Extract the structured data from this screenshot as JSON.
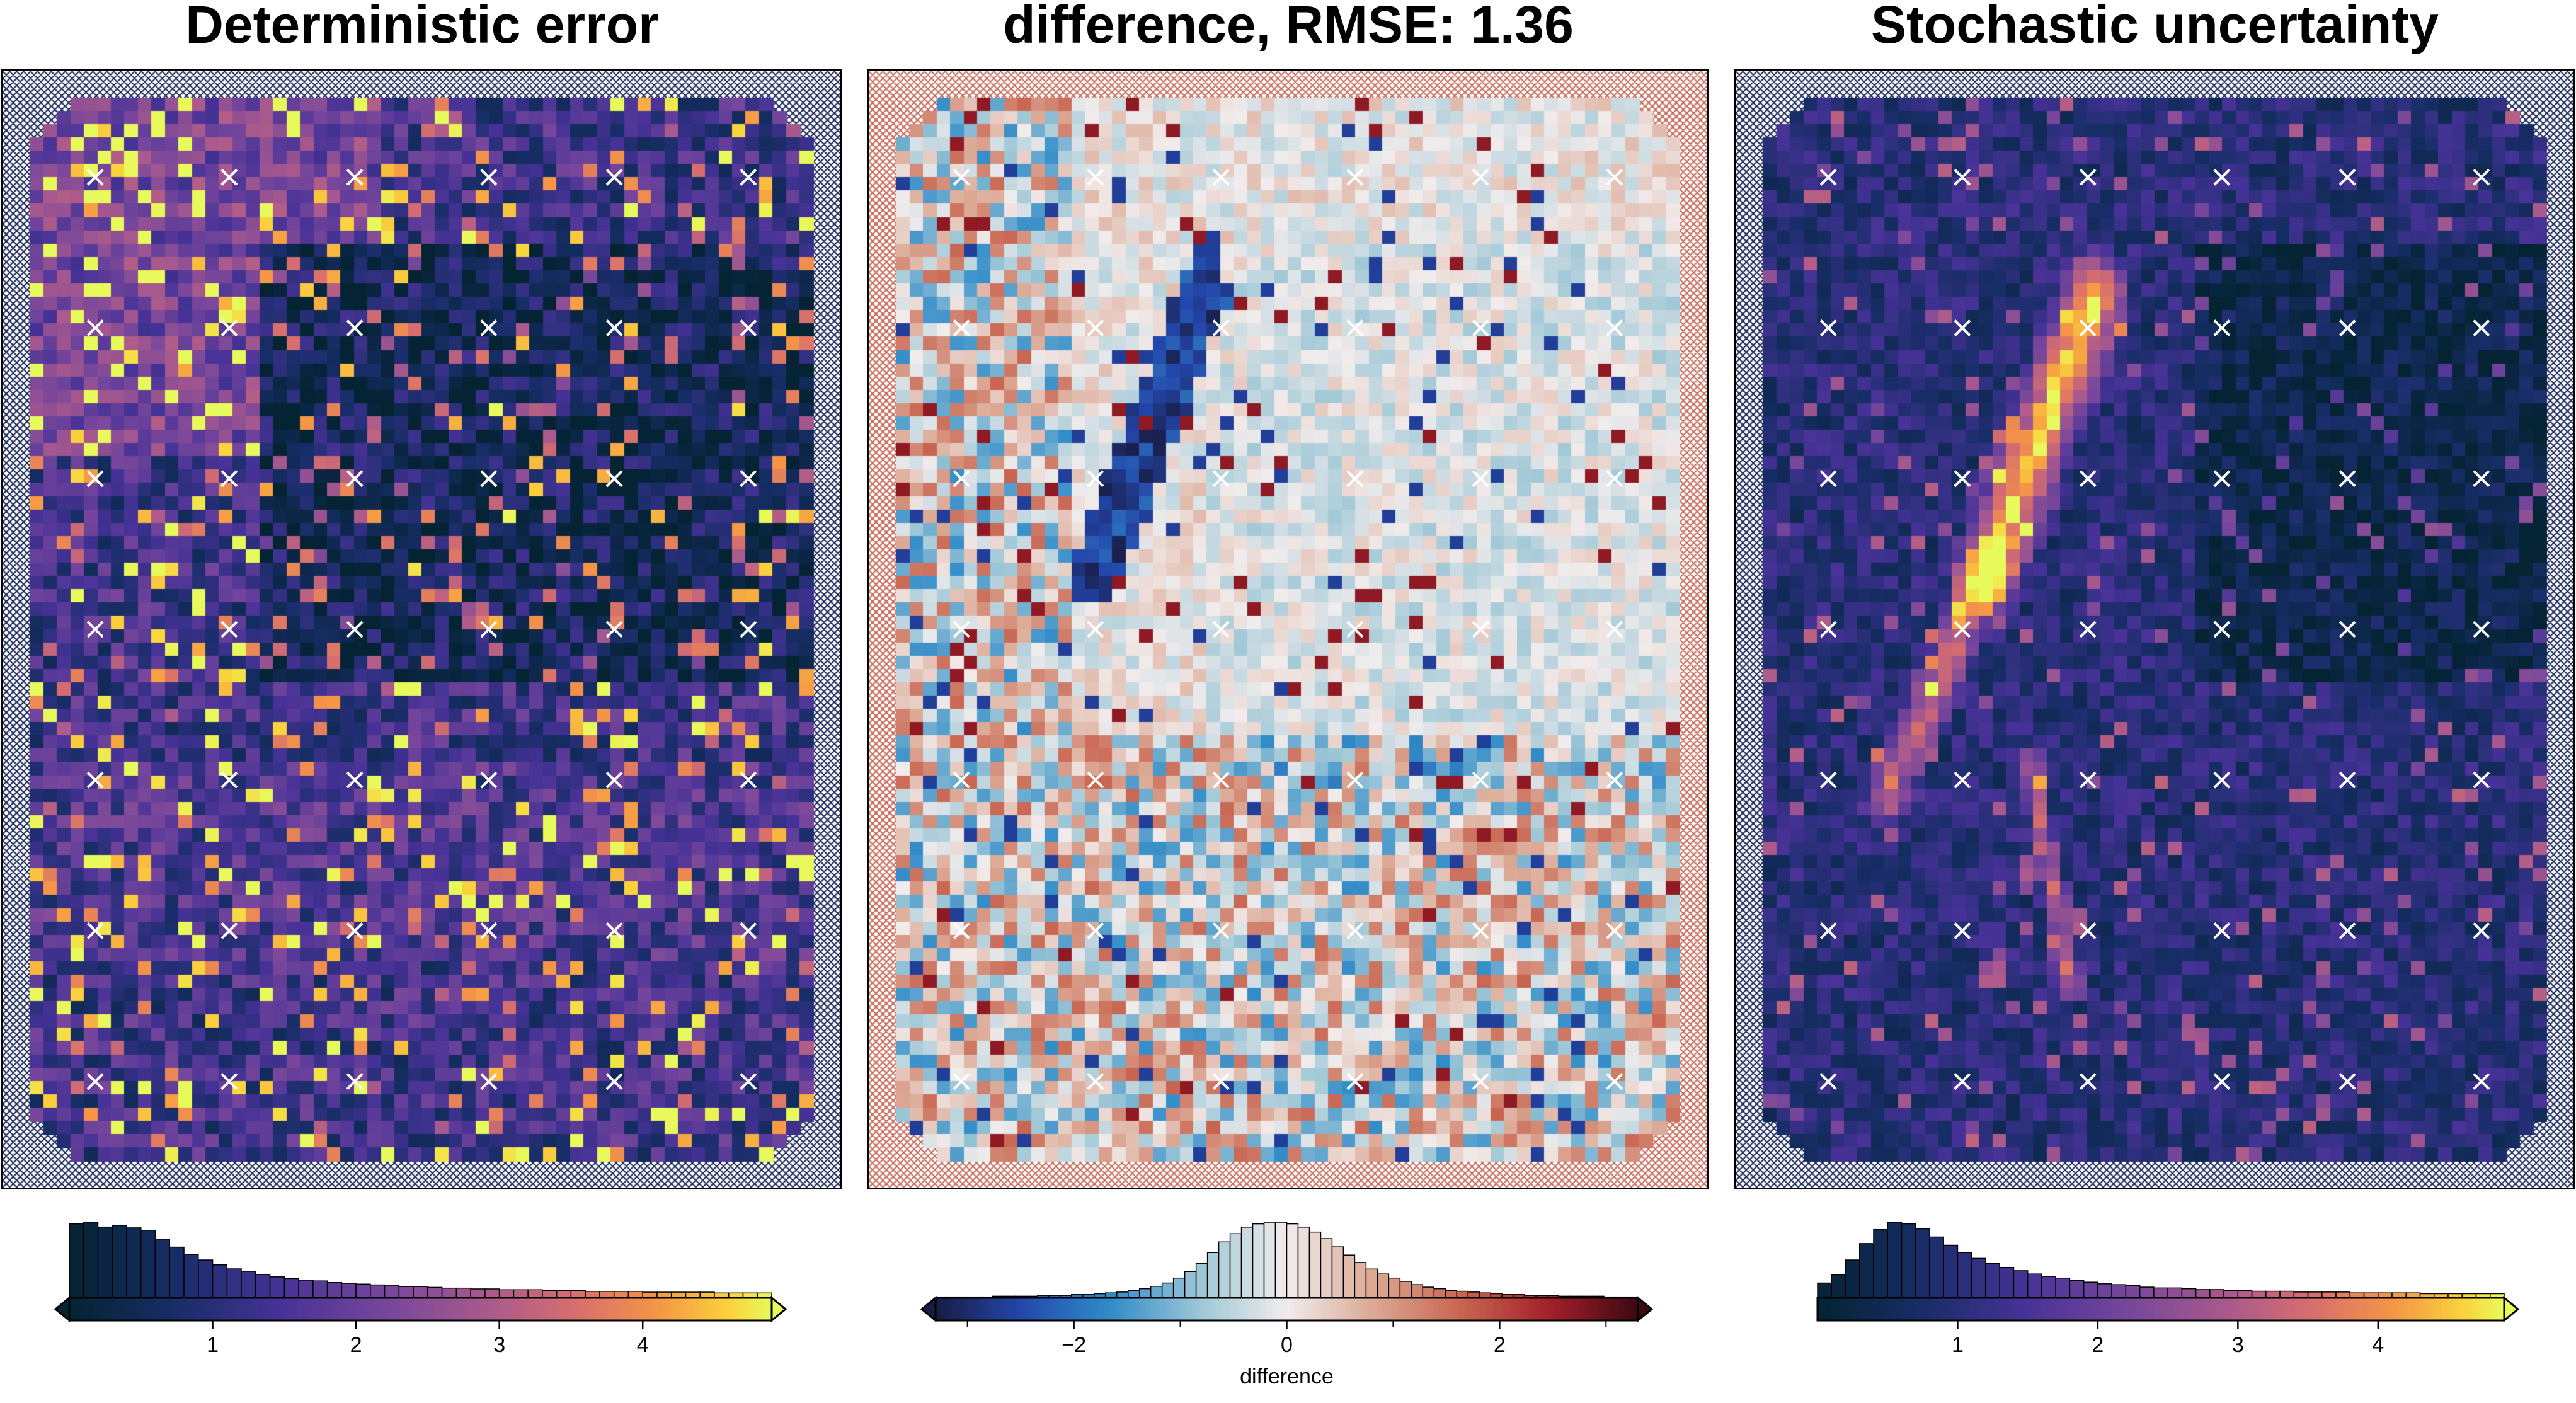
{
  "panels": [
    {
      "title": "Deterministic error",
      "colormap": "thermal",
      "pattern": "deterministic",
      "hatch_color": "#1c2a5a"
    },
    {
      "title": "difference, RMSE: 1.36",
      "colormap": "balance",
      "pattern": "difference",
      "hatch_color": "#c86a5a"
    },
    {
      "title": "Stochastic uncertainty",
      "colormap": "thermal",
      "pattern": "stochastic",
      "hatch_color": "#1c2a5a"
    }
  ],
  "marker_color": "#ffffff",
  "chart_data": [
    {
      "type": "histogram",
      "name": "deterministic-error-colorbar",
      "colormap": "thermal",
      "xlim": [
        0,
        4.9
      ],
      "ticks": [
        1,
        2,
        3,
        4
      ],
      "tick_labels": [
        "1",
        "2",
        "3",
        "4"
      ],
      "xlabel": "",
      "extend": "both",
      "counts": [
        92,
        94,
        88,
        90,
        87,
        84,
        73,
        63,
        54,
        47,
        41,
        36,
        33,
        29,
        26,
        24,
        22,
        21,
        19,
        18,
        17,
        16,
        15,
        14,
        14,
        13,
        12,
        12,
        11,
        11,
        10,
        10,
        10,
        9,
        9,
        9,
        8,
        8,
        8,
        8,
        7,
        7,
        7,
        7,
        7,
        6,
        6,
        6,
        6
      ]
    },
    {
      "type": "histogram",
      "name": "difference-colorbar",
      "colormap": "balance",
      "xlim": [
        -3.3,
        3.3
      ],
      "ticks": [
        -2,
        0,
        2
      ],
      "tick_labels": [
        "−2",
        "0",
        "2"
      ],
      "minor_ticks": [
        -3,
        -1,
        1,
        3
      ],
      "xlabel": "difference",
      "extend": "both",
      "counts": [
        1,
        1,
        1,
        1,
        1,
        2,
        2,
        2,
        2,
        3,
        3,
        3,
        4,
        4,
        5,
        6,
        7,
        9,
        11,
        14,
        18,
        24,
        32,
        42,
        55,
        68,
        78,
        86,
        90,
        92,
        92,
        90,
        86,
        80,
        72,
        62,
        52,
        43,
        35,
        29,
        24,
        20,
        16,
        13,
        11,
        9,
        8,
        7,
        6,
        5,
        4,
        4,
        3,
        3,
        3,
        2,
        2,
        2,
        2,
        1,
        1,
        1
      ]
    },
    {
      "type": "histogram",
      "name": "stochastic-uncertainty-colorbar",
      "colormap": "thermal",
      "xlim": [
        0,
        4.9
      ],
      "ticks": [
        1,
        2,
        3,
        4
      ],
      "tick_labels": [
        "1",
        "2",
        "3",
        "4"
      ],
      "xlabel": "",
      "extend": "max",
      "counts": [
        18,
        28,
        46,
        66,
        83,
        92,
        90,
        84,
        74,
        64,
        55,
        48,
        42,
        37,
        33,
        29,
        26,
        24,
        21,
        19,
        17,
        16,
        15,
        13,
        12,
        12,
        11,
        10,
        10,
        9,
        9,
        8,
        8,
        8,
        7,
        7,
        7,
        7,
        6,
        6,
        6,
        6,
        6,
        5,
        5,
        5,
        5,
        5,
        5
      ]
    }
  ]
}
